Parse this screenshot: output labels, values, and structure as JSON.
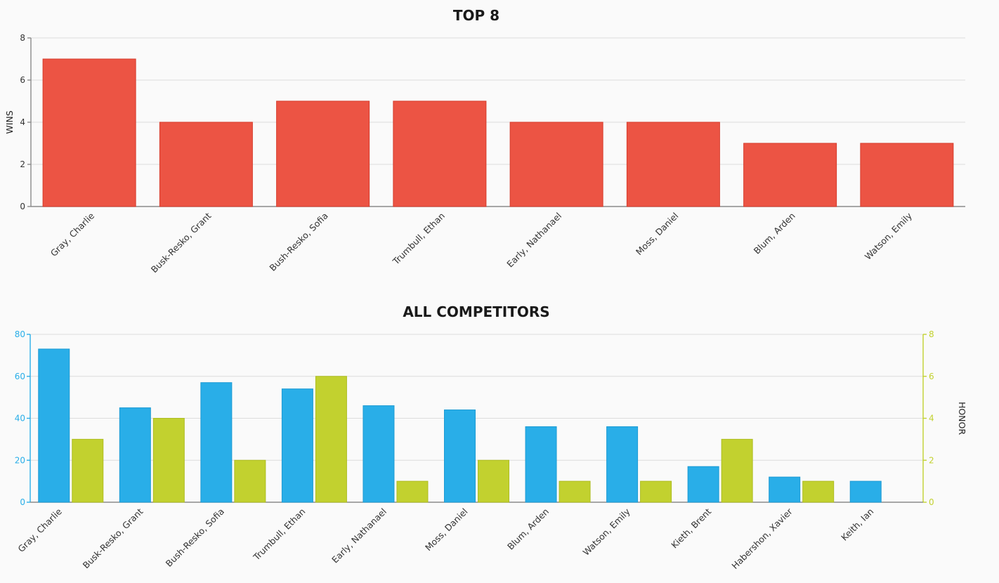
{
  "colors": {
    "wins_bar": "#ec5444",
    "wins_bar_stroke": "#d63c2c",
    "left_axis": "#29aee8",
    "right_axis": "#c2d12f",
    "grid": "#dcdcdc",
    "axis": "#8a8a8a"
  },
  "chart_data": [
    {
      "type": "bar",
      "title": "TOP 8",
      "ylabel": "WINS",
      "xlabel": "",
      "ylim": [
        0,
        8
      ],
      "yticks": [
        0,
        2,
        4,
        6,
        8
      ],
      "grid": true,
      "categories": [
        "Gray, Charlie",
        "Busk-Resko, Grant",
        "Bush-Resko, Sofia",
        "Trumbull, Ethan",
        "Early, Nathanael",
        "Moss, Daniel",
        "Blum, Arden",
        "Watson, Emily"
      ],
      "values": [
        7,
        4,
        5,
        5,
        4,
        4,
        3,
        3
      ]
    },
    {
      "type": "bar",
      "title": "ALL COMPETITORS",
      "xlabel": "",
      "ylabel": "",
      "y2label": "HONOR",
      "ylim": [
        0,
        80
      ],
      "yticks": [
        0,
        20,
        40,
        60,
        80
      ],
      "y2lim": [
        0,
        8
      ],
      "y2ticks": [
        0,
        2,
        4,
        6,
        8
      ],
      "grid": true,
      "categories": [
        "Gray, Charlie",
        "Busk-Resko, Grant",
        "Bush-Resko, Sofia",
        "Trumbull, Ethan",
        "Early, Nathanael",
        "Moss, Daniel",
        "Blum, Arden",
        "Watson, Emily",
        "Kieth, Brent",
        "Habershon, Xavier",
        "Keith, Ian"
      ],
      "series": [
        {
          "axis": "left",
          "values": [
            73,
            45,
            57,
            54,
            46,
            44,
            36,
            36,
            17,
            12,
            10
          ]
        },
        {
          "axis": "right",
          "values": [
            3,
            4,
            2,
            6,
            1,
            2,
            1,
            1,
            3,
            1,
            0
          ]
        }
      ]
    }
  ]
}
